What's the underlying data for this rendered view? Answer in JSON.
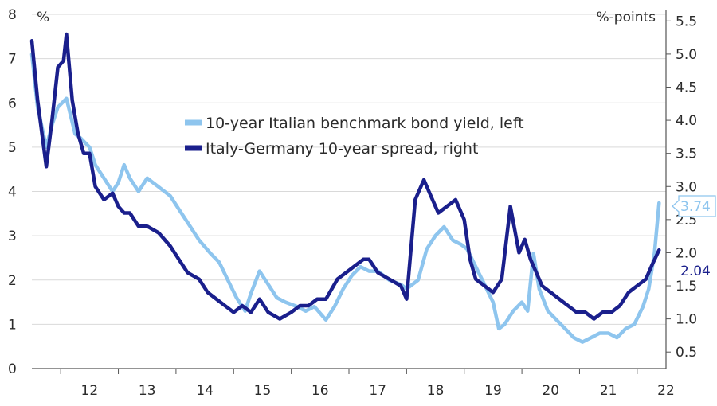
{
  "chart_data": {
    "type": "line",
    "left_axis": {
      "unit": "%",
      "ylim": [
        0,
        8
      ],
      "ticks": [
        "0",
        "1",
        "2",
        "3",
        "4",
        "5",
        "6",
        "7",
        "8"
      ]
    },
    "right_axis": {
      "unit": "%-points",
      "ylim": [
        0.25,
        5.6
      ],
      "ticks": [
        "0.5",
        "1.0",
        "1.5",
        "2.0",
        "2.5",
        "3.0",
        "3.5",
        "4.0",
        "4.5",
        "5.0",
        "5.5"
      ]
    },
    "x_ticks": [
      "12",
      "13",
      "14",
      "15",
      "16",
      "17",
      "18",
      "19",
      "20",
      "21",
      "22"
    ],
    "xlim": [
      2011.5,
      2022.5
    ],
    "grid": "horizontal",
    "legend": "upper-center",
    "series": [
      {
        "name": "10-year Italian benchmark bond yield, left",
        "axis": "left",
        "color": "#8ec5ee",
        "end_label": "3.74",
        "x": [
          2011.5,
          2011.6,
          2011.75,
          2011.85,
          2011.95,
          2012.1,
          2012.25,
          2012.35,
          2012.5,
          2012.6,
          2012.75,
          2012.9,
          2013.0,
          2013.1,
          2013.2,
          2013.35,
          2013.5,
          2013.7,
          2013.9,
          2014.05,
          2014.2,
          2014.4,
          2014.6,
          2014.75,
          2014.9,
          2015.05,
          2015.2,
          2015.3,
          2015.45,
          2015.6,
          2015.75,
          2015.9,
          2016.1,
          2016.25,
          2016.4,
          2016.6,
          2016.75,
          2016.9,
          2017.05,
          2017.2,
          2017.35,
          2017.5,
          2017.7,
          2017.9,
          2018.0,
          2018.2,
          2018.35,
          2018.5,
          2018.65,
          2018.8,
          2018.95,
          2019.05,
          2019.2,
          2019.35,
          2019.5,
          2019.6,
          2019.7,
          2019.85,
          2020.0,
          2020.1,
          2020.2,
          2020.3,
          2020.45,
          2020.6,
          2020.75,
          2020.9,
          2021.05,
          2021.2,
          2021.35,
          2021.5,
          2021.65,
          2021.8,
          2021.95,
          2022.1,
          2022.2,
          2022.3,
          2022.38
        ],
        "values": [
          7.1,
          5.9,
          5.0,
          5.5,
          5.9,
          6.1,
          5.3,
          5.2,
          5.0,
          4.6,
          4.3,
          4.0,
          4.2,
          4.6,
          4.3,
          4.0,
          4.3,
          4.1,
          3.9,
          3.6,
          3.3,
          2.9,
          2.6,
          2.4,
          2.0,
          1.6,
          1.3,
          1.7,
          2.2,
          1.9,
          1.6,
          1.5,
          1.4,
          1.3,
          1.4,
          1.1,
          1.4,
          1.8,
          2.1,
          2.3,
          2.2,
          2.2,
          2.0,
          1.9,
          1.8,
          2.0,
          2.7,
          3.0,
          3.2,
          2.9,
          2.8,
          2.7,
          2.3,
          1.9,
          1.5,
          0.9,
          1.0,
          1.3,
          1.5,
          1.3,
          2.6,
          1.8,
          1.3,
          1.1,
          0.9,
          0.7,
          0.6,
          0.7,
          0.8,
          0.8,
          0.7,
          0.9,
          1.0,
          1.4,
          1.8,
          2.6,
          3.74
        ]
      },
      {
        "name": "Italy-Germany 10-year spread, right",
        "axis": "right",
        "color": "#1a1f8c",
        "end_label": "2.04",
        "x": [
          2011.5,
          2011.6,
          2011.75,
          2011.85,
          2011.95,
          2012.05,
          2012.1,
          2012.2,
          2012.3,
          2012.4,
          2012.5,
          2012.6,
          2012.75,
          2012.9,
          2013.0,
          2013.1,
          2013.2,
          2013.35,
          2013.5,
          2013.7,
          2013.9,
          2014.05,
          2014.2,
          2014.4,
          2014.55,
          2014.7,
          2014.85,
          2015.0,
          2015.15,
          2015.3,
          2015.45,
          2015.6,
          2015.8,
          2016.0,
          2016.15,
          2016.3,
          2016.45,
          2016.6,
          2016.8,
          2016.95,
          2017.1,
          2017.25,
          2017.35,
          2017.5,
          2017.7,
          2017.9,
          2018.0,
          2018.15,
          2018.3,
          2018.4,
          2018.55,
          2018.7,
          2018.85,
          2019.0,
          2019.1,
          2019.2,
          2019.35,
          2019.5,
          2019.65,
          2019.8,
          2019.95,
          2020.05,
          2020.15,
          2020.25,
          2020.35,
          2020.5,
          2020.65,
          2020.8,
          2020.95,
          2021.1,
          2021.25,
          2021.4,
          2021.55,
          2021.7,
          2021.85,
          2022.0,
          2022.15,
          2022.25,
          2022.38
        ],
        "values": [
          5.2,
          4.3,
          3.3,
          4.0,
          4.8,
          4.9,
          5.3,
          4.3,
          3.8,
          3.5,
          3.5,
          3.0,
          2.8,
          2.9,
          2.7,
          2.6,
          2.6,
          2.4,
          2.4,
          2.3,
          2.1,
          1.9,
          1.7,
          1.6,
          1.4,
          1.3,
          1.2,
          1.1,
          1.2,
          1.1,
          1.3,
          1.1,
          1.0,
          1.1,
          1.2,
          1.2,
          1.3,
          1.3,
          1.6,
          1.7,
          1.8,
          1.9,
          1.9,
          1.7,
          1.6,
          1.5,
          1.3,
          2.8,
          3.1,
          2.9,
          2.6,
          2.7,
          2.8,
          2.5,
          1.9,
          1.6,
          1.5,
          1.4,
          1.6,
          2.7,
          2.0,
          2.2,
          1.9,
          1.7,
          1.5,
          1.4,
          1.3,
          1.2,
          1.1,
          1.1,
          1.0,
          1.1,
          1.1,
          1.2,
          1.4,
          1.5,
          1.6,
          1.8,
          2.04
        ]
      }
    ]
  }
}
